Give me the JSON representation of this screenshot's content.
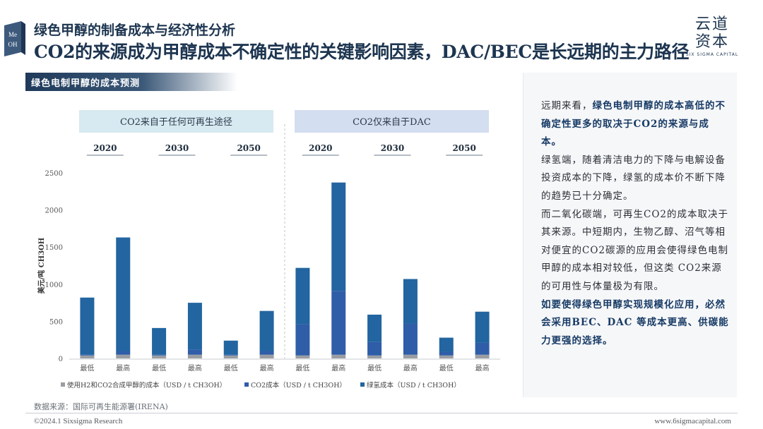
{
  "header": {
    "logo_text": [
      "Me",
      "OH"
    ],
    "subtitle": "绿色甲醇的制备成本与经济性分析",
    "title": "CO2的来源成为甲醇成本不确定性的关键影响因素，DAC/BEC是长远期的主力路径"
  },
  "brand": {
    "name_line1": "云道",
    "name_line2": "资本",
    "name_en": "SIX SIGMA CAPITAL"
  },
  "section": {
    "label": "绿色电制甲醇的成本预测"
  },
  "panel": {
    "paragraphs": [
      [
        {
          "t": "远期来看，",
          "hl": false
        },
        {
          "t": "绿色电制甲醇的成本高低的不确定性更多的取决于CO2的来源与成本。",
          "hl": true
        }
      ],
      [
        {
          "t": "绿氢端，随着清洁电力的下降与电解设备投资成本的下降，绿氢的成本价不断下降的趋势已十分确定。",
          "hl": false
        }
      ],
      [
        {
          "t": "而二氧化碳端，可再生CO2的成本取决于其来源。中短期内，生物乙醇、沼气等相对便宜的CO2碳源的应用会使得绿色电制甲醇的成本相对较低，但这类 CO2来源的可用性与体量极为有限。",
          "hl": false
        }
      ],
      [
        {
          "t": "如要使得绿色甲醇实现规模化应用，必然会采用BEC、DAC 等成本更高、供碳能力更强的选择。",
          "hl": true
        }
      ]
    ]
  },
  "footer": {
    "source": "数据来源：国际可再生能源署(IRENA)",
    "copyright": "©2024.1 Sixsigma Research",
    "website": "www.6sigmacapital.com"
  },
  "chart_data": {
    "type": "bar",
    "stacked": true,
    "groups": [
      {
        "label": "CO2来自于任何可再生途径",
        "years": [
          "2020",
          "2030",
          "2050"
        ]
      },
      {
        "label": "CO2仅来自于DAC",
        "years": [
          "2020",
          "2030",
          "2050"
        ]
      }
    ],
    "categories": [
      "最低",
      "最高",
      "最低",
      "最高",
      "最低",
      "最高",
      "最低",
      "最高",
      "最低",
      "最高",
      "最低",
      "最高"
    ],
    "ylabel": "美元/吨 CH3OH",
    "yticks": [
      "0",
      "500",
      "1000",
      "1500",
      "2000",
      "2500"
    ],
    "ylim": [
      0,
      2500
    ],
    "grid": false,
    "legend_position": "bottom",
    "series": [
      {
        "name": "使用H2和CO2合成甲醇的成本（USD / t CH3OH）",
        "color": "#9a9ea3",
        "values": [
          40,
          50,
          40,
          50,
          40,
          50,
          40,
          50,
          40,
          50,
          40,
          50
        ]
      },
      {
        "name": "CO2成本（USD / t CH3OH）",
        "color": "#2f5da8",
        "values": [
          10,
          50,
          10,
          70,
          10,
          50,
          420,
          860,
          180,
          420,
          50,
          160
        ]
      },
      {
        "name": "绿氢成本（USD / t CH3OH）",
        "color": "#2265a0",
        "values": [
          770,
          1530,
          360,
          630,
          190,
          540,
          760,
          1460,
          370,
          600,
          190,
          420
        ]
      }
    ]
  }
}
